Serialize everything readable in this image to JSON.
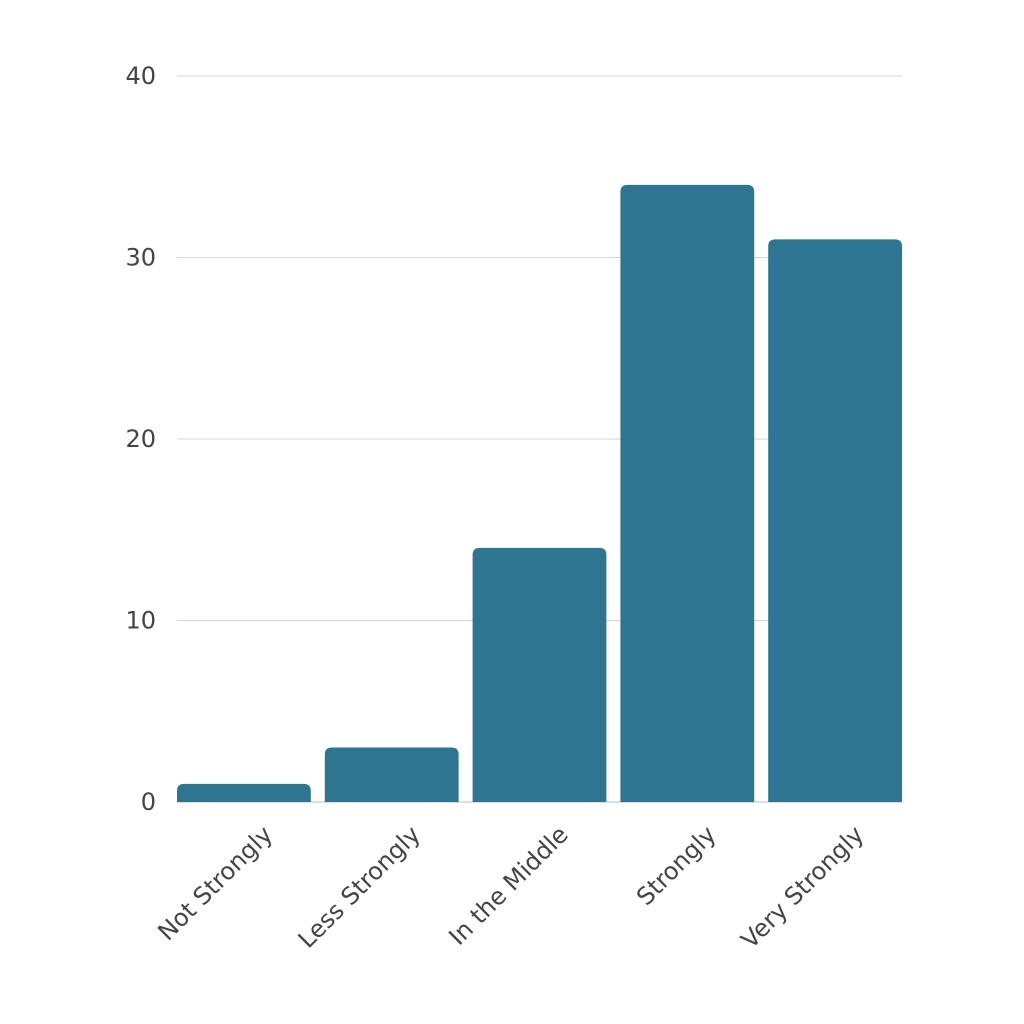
{
  "chart_data": {
    "type": "bar",
    "categories": [
      "Not Strongly",
      "Less Strongly",
      "In the Middle",
      "Strongly",
      "Very Strongly"
    ],
    "values": [
      1,
      3,
      14,
      34,
      31
    ],
    "ylim": [
      0,
      40
    ],
    "yticks": [
      0,
      10,
      20,
      30,
      40
    ],
    "grid": true,
    "bar_color": "#2e7591",
    "title": "",
    "xlabel": "",
    "ylabel": ""
  }
}
